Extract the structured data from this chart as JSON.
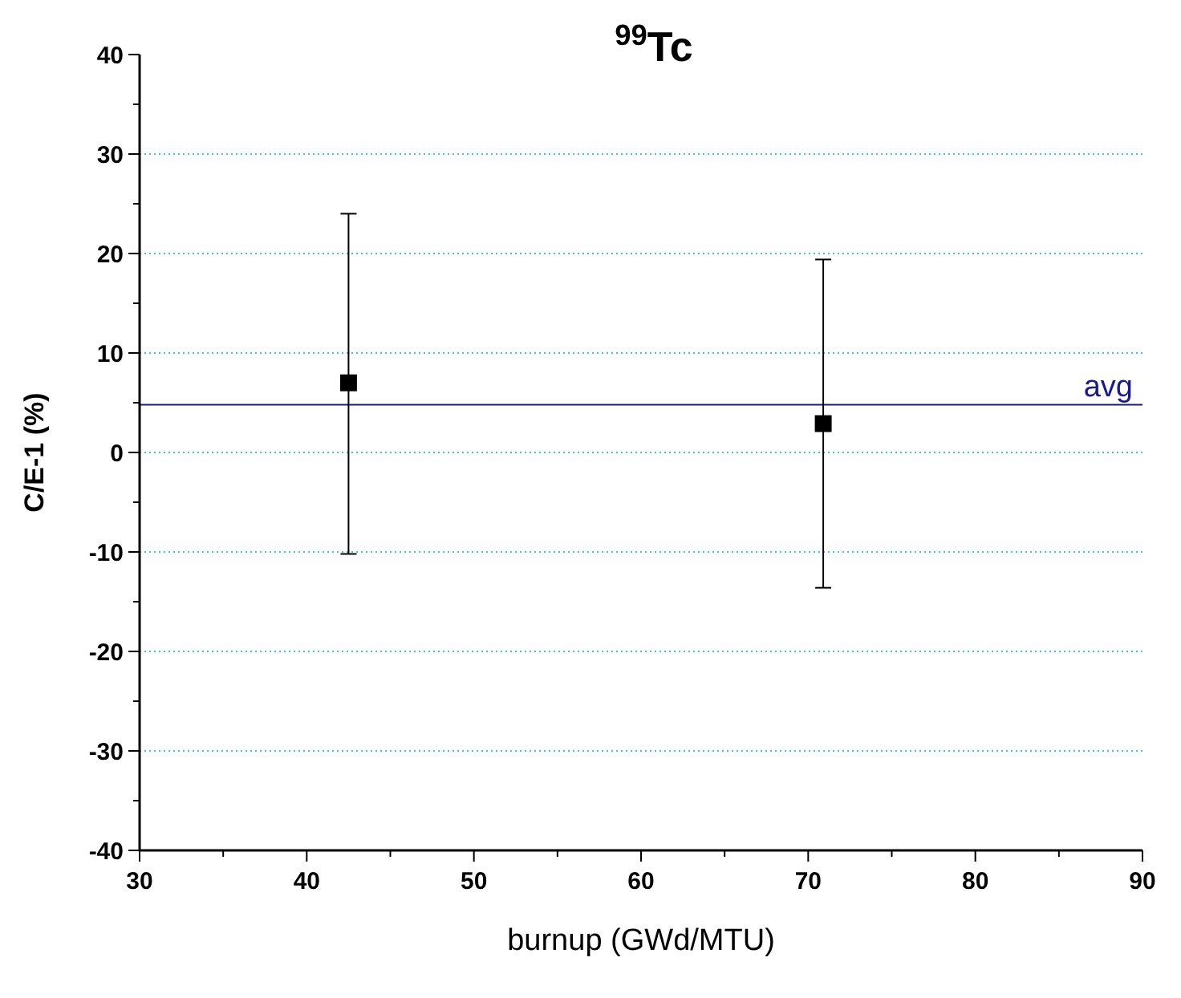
{
  "chart_data": {
    "type": "scatter",
    "title": "$^{99}$Tc",
    "xlabel": "burnup (GWd/MTU)",
    "ylabel": "C/E-1 (%)",
    "x": [
      42.5,
      70.9
    ],
    "series": [
      {
        "color": "#000000",
        "values": [
          7,
          2.9
        ],
        "errors": [
          [
            -10.2,
            24
          ],
          [
            -13.6,
            19.4
          ]
        ]
      }
    ],
    "xlim": [
      30,
      90
    ],
    "ylim": [
      -40,
      40
    ],
    "xticks": [
      30,
      {
        "value": 35,
        "label": null
      },
      40,
      {
        "value": 45,
        "label": null
      },
      50,
      {
        "value": 55,
        "label": null
      },
      60,
      {
        "value": 65,
        "label": null
      },
      70,
      {
        "value": 75,
        "label": null
      },
      80,
      {
        "value": 85,
        "label": null
      },
      90
    ],
    "yticks": [
      -40,
      {
        "value": -35,
        "label": null
      },
      -30,
      {
        "value": -25,
        "label": null
      },
      -20,
      {
        "value": -15,
        "label": null
      },
      -10,
      {
        "value": -5,
        "label": null
      },
      0,
      {
        "value": 5,
        "label": null
      },
      10,
      {
        "value": 15,
        "label": null
      },
      20,
      {
        "value": 25,
        "label": null
      },
      30,
      {
        "value": 35,
        "label": null
      },
      40
    ],
    "ref_lines": [
      {
        "axis": "y",
        "value": 4.8,
        "label": "avg",
        "color": "#1a1a8c"
      }
    ],
    "grid": "y",
    "marker": "square"
  }
}
